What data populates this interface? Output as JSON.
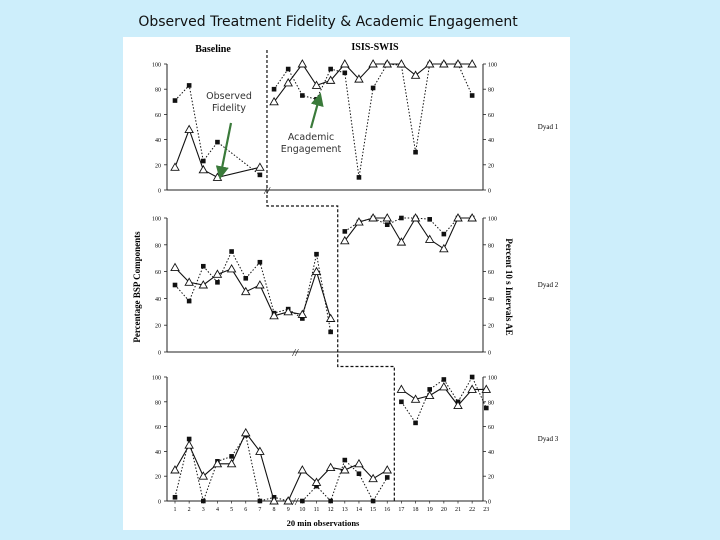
{
  "slide_title": "Observed Treatment Fidelity & Academic Engagement",
  "phase_labels": {
    "baseline": "Baseline",
    "intervention": "ISIS-SWIS"
  },
  "y_axis_left_label": "Percentage BSP Components",
  "y_axis_right_label": "Percent 10 s Intervals AE",
  "x_axis_label": "20 min observations",
  "callouts": {
    "observed_fidelity": [
      "Observed",
      "Fidelity"
    ],
    "academic_engagement": [
      "Academic",
      "Engagement"
    ]
  },
  "colors": {
    "background": "#cdeefb",
    "panel": "#ffffff",
    "callout_arrow": "#3a7a3a"
  },
  "chart_data": [
    {
      "type": "line",
      "panel_label": "Dyad 1",
      "x_ticks": [
        1,
        2,
        3,
        4,
        5,
        6,
        7,
        8,
        9,
        10,
        11,
        12,
        13,
        14,
        15,
        16,
        17,
        18,
        19,
        20,
        21,
        22,
        23
      ],
      "left_y_ticks": [
        0,
        20,
        40,
        60,
        80,
        100
      ],
      "right_y_ticks": [
        0,
        20,
        40,
        60,
        80,
        100
      ],
      "ylim": [
        0,
        100
      ],
      "phase_change_after": 7,
      "axis_break_after": 7,
      "series": [
        {
          "marker": "square",
          "line": "dotted",
          "baseline_x": [
            1,
            2,
            3,
            4,
            7
          ],
          "baseline_y": [
            71,
            83,
            23,
            38,
            12
          ],
          "treatment_x": [
            8,
            9,
            10,
            11,
            12,
            13,
            14,
            15,
            16,
            17,
            18,
            19,
            20,
            21,
            22
          ],
          "treatment_y": [
            80,
            96,
            75,
            72,
            96,
            93,
            10,
            81,
            100,
            99,
            30,
            100,
            100,
            100,
            75
          ]
        },
        {
          "marker": "triangle",
          "line": "solid",
          "baseline_x": [
            1,
            2,
            3,
            4,
            7
          ],
          "baseline_y": [
            18,
            48,
            16,
            10,
            18
          ],
          "treatment_x": [
            8,
            9,
            10,
            11,
            12,
            13,
            14,
            15,
            16,
            17,
            18,
            19,
            20,
            21,
            22
          ],
          "treatment_y": [
            70,
            85,
            100,
            83,
            87,
            100,
            88,
            100,
            100,
            100,
            91,
            100,
            100,
            100,
            100
          ]
        }
      ]
    },
    {
      "type": "line",
      "panel_label": "Dyad 2",
      "x_ticks": [
        1,
        2,
        3,
        4,
        5,
        6,
        7,
        8,
        9,
        10,
        11,
        12,
        13,
        14,
        15,
        16,
        17,
        18,
        19,
        20,
        21,
        22,
        23
      ],
      "left_y_ticks": [
        0,
        20,
        40,
        60,
        80,
        100
      ],
      "right_y_ticks": [
        0,
        20,
        40,
        60,
        80,
        100
      ],
      "ylim": [
        0,
        100
      ],
      "phase_change_after": 12,
      "axis_break_after": 9,
      "series": [
        {
          "marker": "square",
          "line": "dotted",
          "baseline_x": [
            1,
            2,
            3,
            4,
            5,
            6,
            7,
            8,
            9,
            10,
            11,
            12
          ],
          "baseline_y": [
            50,
            38,
            64,
            52,
            75,
            55,
            67,
            29,
            32,
            25,
            73,
            15
          ],
          "treatment_x": [
            13,
            14,
            15,
            16,
            17,
            18,
            19,
            20,
            21,
            22
          ],
          "treatment_y": [
            90,
            97,
            100,
            95,
            100,
            100,
            99,
            88,
            100,
            100
          ]
        },
        {
          "marker": "triangle",
          "line": "solid",
          "baseline_x": [
            1,
            2,
            3,
            4,
            5,
            6,
            7,
            8,
            9,
            10,
            11,
            12
          ],
          "baseline_y": [
            63,
            52,
            50,
            58,
            62,
            45,
            50,
            27,
            30,
            28,
            60,
            25
          ],
          "treatment_x": [
            13,
            14,
            15,
            16,
            17,
            18,
            19,
            20,
            21,
            22
          ],
          "treatment_y": [
            83,
            97,
            100,
            100,
            82,
            100,
            84,
            77,
            100,
            100
          ]
        }
      ]
    },
    {
      "type": "line",
      "panel_label": "Dyad 3",
      "x_ticks": [
        1,
        2,
        3,
        4,
        5,
        6,
        7,
        8,
        9,
        10,
        11,
        12,
        13,
        14,
        15,
        16,
        17,
        18,
        19,
        20,
        21,
        22,
        23
      ],
      "left_y_ticks": [
        0,
        20,
        40,
        60,
        80,
        100
      ],
      "right_y_ticks": [
        0,
        20,
        40,
        60,
        80,
        100
      ],
      "ylim": [
        0,
        100
      ],
      "phase_change_after": 16,
      "axis_break_after": 9,
      "series": [
        {
          "marker": "square",
          "line": "dotted",
          "baseline_x": [
            1,
            2,
            3,
            4,
            5,
            6,
            7,
            8,
            9,
            10,
            11,
            12,
            13,
            14,
            15,
            16
          ],
          "baseline_y": [
            3,
            50,
            0,
            32,
            36,
            53,
            0,
            3,
            0,
            0,
            12,
            0,
            33,
            22,
            0,
            19
          ],
          "treatment_x": [
            17,
            18,
            19,
            20,
            21,
            22,
            23
          ],
          "treatment_y": [
            80,
            63,
            90,
            98,
            80,
            100,
            75
          ]
        },
        {
          "marker": "triangle",
          "line": "solid",
          "baseline_x": [
            1,
            2,
            3,
            4,
            5,
            6,
            7,
            8,
            9,
            10,
            11,
            12,
            13,
            14,
            15,
            16
          ],
          "baseline_y": [
            25,
            45,
            20,
            30,
            30,
            55,
            40,
            0,
            0,
            25,
            15,
            27,
            25,
            30,
            18,
            25
          ],
          "treatment_x": [
            17,
            18,
            19,
            20,
            21,
            22,
            23
          ],
          "treatment_y": [
            90,
            82,
            85,
            92,
            77,
            90,
            90
          ]
        }
      ]
    }
  ]
}
